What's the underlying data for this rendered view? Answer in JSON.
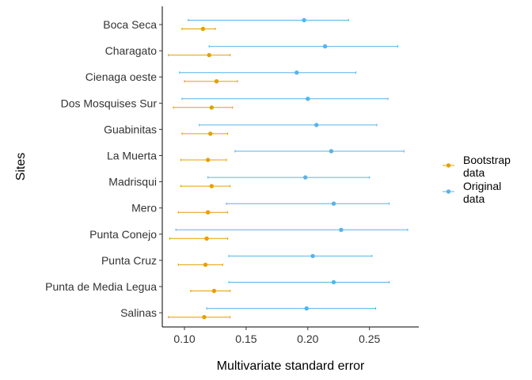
{
  "chart_data": {
    "type": "scatter",
    "xlabel": "Multivariate standard error",
    "ylabel": "Sites",
    "xlim": [
      0.082,
      0.29
    ],
    "x_ticks": [
      0.1,
      0.15,
      0.2,
      0.25
    ],
    "x_tick_labels": [
      "0.10",
      "0.15",
      "0.20",
      "0.25"
    ],
    "grid": false,
    "legend_position": "right",
    "categories": [
      "Boca Seca",
      "Charagato",
      "Cienaga oeste",
      "Dos Mosquises Sur",
      "Guabinitas",
      "La Muerta",
      "Madrisqui",
      "Mero",
      "Punta Conejo",
      "Punta Cruz",
      "Punta de Media Legua",
      "Salinas"
    ],
    "series": [
      {
        "name": "Bootstrap\ndata",
        "legend_lines": [
          "Bootstrap",
          "data"
        ],
        "color": "#E69F00",
        "points": [
          {
            "site": "Boca Seca",
            "x": 0.115,
            "low": 0.098,
            "high": 0.125
          },
          {
            "site": "Charagato",
            "x": 0.12,
            "low": 0.087,
            "high": 0.137
          },
          {
            "site": "Cienaga oeste",
            "x": 0.126,
            "low": 0.1,
            "high": 0.143
          },
          {
            "site": "Dos Mosquises Sur",
            "x": 0.122,
            "low": 0.091,
            "high": 0.139
          },
          {
            "site": "Guabinitas",
            "x": 0.121,
            "low": 0.098,
            "high": 0.135
          },
          {
            "site": "La Muerta",
            "x": 0.119,
            "low": 0.097,
            "high": 0.134
          },
          {
            "site": "Madrisqui",
            "x": 0.122,
            "low": 0.097,
            "high": 0.137
          },
          {
            "site": "Mero",
            "x": 0.119,
            "low": 0.095,
            "high": 0.135
          },
          {
            "site": "Punta Conejo",
            "x": 0.118,
            "low": 0.088,
            "high": 0.135
          },
          {
            "site": "Punta Cruz",
            "x": 0.117,
            "low": 0.095,
            "high": 0.131
          },
          {
            "site": "Punta de Media Legua",
            "x": 0.124,
            "low": 0.105,
            "high": 0.137
          },
          {
            "site": "Salinas",
            "x": 0.116,
            "low": 0.087,
            "high": 0.137
          }
        ]
      },
      {
        "name": "Original\ndata",
        "legend_lines": [
          "Original",
          "data"
        ],
        "color": "#56B4E9",
        "points": [
          {
            "site": "Boca Seca",
            "x": 0.197,
            "low": 0.103,
            "high": 0.233
          },
          {
            "site": "Charagato",
            "x": 0.214,
            "low": 0.12,
            "high": 0.273
          },
          {
            "site": "Cienaga oeste",
            "x": 0.191,
            "low": 0.096,
            "high": 0.239
          },
          {
            "site": "Dos Mosquises Sur",
            "x": 0.2,
            "low": 0.098,
            "high": 0.265
          },
          {
            "site": "Guabinitas",
            "x": 0.207,
            "low": 0.112,
            "high": 0.256
          },
          {
            "site": "La Muerta",
            "x": 0.219,
            "low": 0.141,
            "high": 0.278
          },
          {
            "site": "Madrisqui",
            "x": 0.198,
            "low": 0.119,
            "high": 0.25
          },
          {
            "site": "Mero",
            "x": 0.221,
            "low": 0.134,
            "high": 0.266
          },
          {
            "site": "Punta Conejo",
            "x": 0.227,
            "low": 0.093,
            "high": 0.281
          },
          {
            "site": "Punta Cruz",
            "x": 0.204,
            "low": 0.136,
            "high": 0.252
          },
          {
            "site": "Punta de Media Legua",
            "x": 0.221,
            "low": 0.136,
            "high": 0.266
          },
          {
            "site": "Salinas",
            "x": 0.199,
            "low": 0.118,
            "high": 0.255
          }
        ]
      }
    ]
  }
}
